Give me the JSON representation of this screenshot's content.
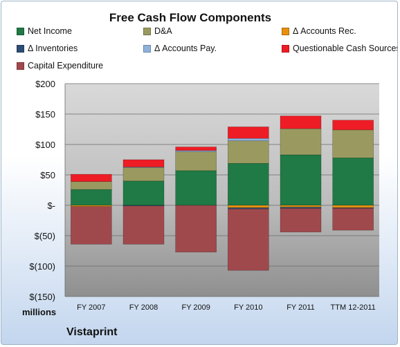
{
  "chart_data": {
    "type": "bar",
    "stacked": true,
    "title": "Free Cash Flow Components",
    "units": "millions",
    "company": "Vistaprint",
    "categories": [
      "FY 2007",
      "FY 2008",
      "FY 2009",
      "FY 2010",
      "FY 2011",
      "TTM 12-2011"
    ],
    "ylim": [
      -150,
      200
    ],
    "yticks": [
      200,
      150,
      100,
      50,
      0,
      -50,
      -100,
      -150
    ],
    "ytick_labels": [
      "$200",
      "$150",
      "$100",
      "$50",
      "$-",
      "$(50)",
      "$(100)",
      "$(150)"
    ],
    "grid": true,
    "legend_position": "top",
    "series": [
      {
        "name": "Net Income",
        "color": "#1f7a45",
        "values": [
          26,
          40,
          57,
          69,
          83,
          78
        ]
      },
      {
        "name": "D&A",
        "color": "#9a9a60",
        "values": [
          13,
          22,
          31,
          37,
          43,
          46
        ]
      },
      {
        "name": "Δ Accounts Rec.",
        "color": "#e7900f",
        "values": [
          -2,
          0,
          0,
          -4,
          -3,
          -4
        ]
      },
      {
        "name": "Δ Inventories",
        "color": "#2c4d75",
        "values": [
          0,
          -1,
          0,
          -2,
          -2,
          -1
        ]
      },
      {
        "name": "Δ Accounts Pay.",
        "color": "#8fb2db",
        "values": [
          0,
          1,
          2,
          4,
          0,
          0
        ]
      },
      {
        "name": "Questionable Cash Sources",
        "color": "#ee1c25",
        "values": [
          12,
          12,
          6,
          19,
          21,
          16
        ]
      },
      {
        "name": "Capital Expenditure",
        "color": "#a0494d",
        "values": [
          -62,
          -63,
          -77,
          -101,
          -39,
          -36
        ]
      }
    ]
  }
}
